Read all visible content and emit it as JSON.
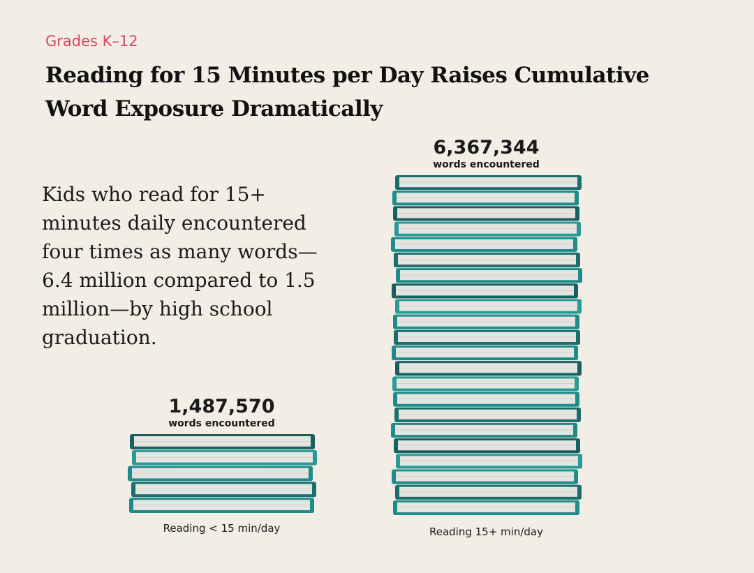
{
  "chart_data": {
    "type": "bar",
    "supertitle": "Grades K–12",
    "title": "Reading for 15 Minutes per Day Raises Cumulative Word Exposure Dramatically",
    "annotation": "Kids who read for 15+ minutes daily encountered four times as many words—6.4 million compared to 1.5 million—by high school graduation.",
    "categories": [
      "Reading < 15 min/day",
      "Reading 15+ min/day"
    ],
    "values": [
      1487570,
      6367344
    ],
    "value_labels": [
      "1,487,570",
      "6,367,344"
    ],
    "value_sublabel": "words encountered",
    "color": "#1e8c8a"
  }
}
